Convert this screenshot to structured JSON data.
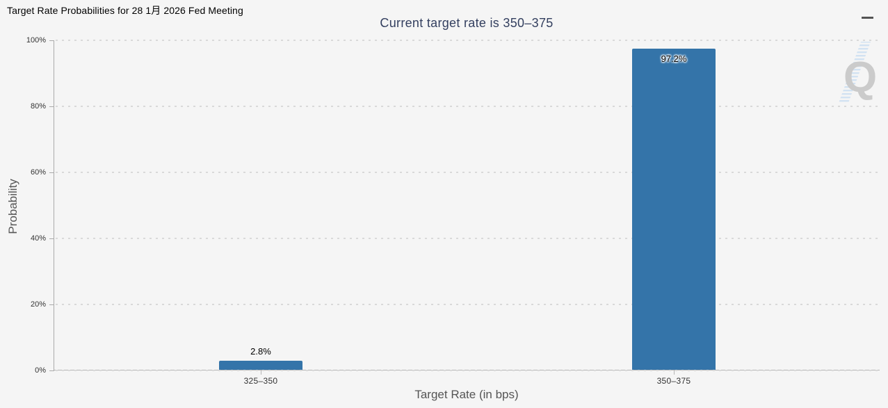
{
  "page": {
    "background": "#f5f5f5"
  },
  "header": {
    "title": "Target Rate Probabilities for 28 1月 2026 Fed Meeting"
  },
  "watermark": {
    "letter": "Q"
  },
  "chart_data": {
    "type": "bar",
    "title": "Current target rate is 350–375",
    "xlabel": "Target Rate (in bps)",
    "ylabel": "Probability",
    "categories": [
      "325–350",
      "350–375"
    ],
    "values": [
      2.8,
      97.2
    ],
    "value_labels": [
      "2.8%",
      "97.2%"
    ],
    "ylim": [
      0,
      100
    ],
    "ytick_step": 20,
    "ytick_labels": [
      "0%",
      "20%",
      "40%",
      "60%",
      "80%",
      "100%"
    ],
    "grid": "horizontal-dotted",
    "legend": "none",
    "bar_color": "#3474a9",
    "title_color": "#333f5f"
  }
}
